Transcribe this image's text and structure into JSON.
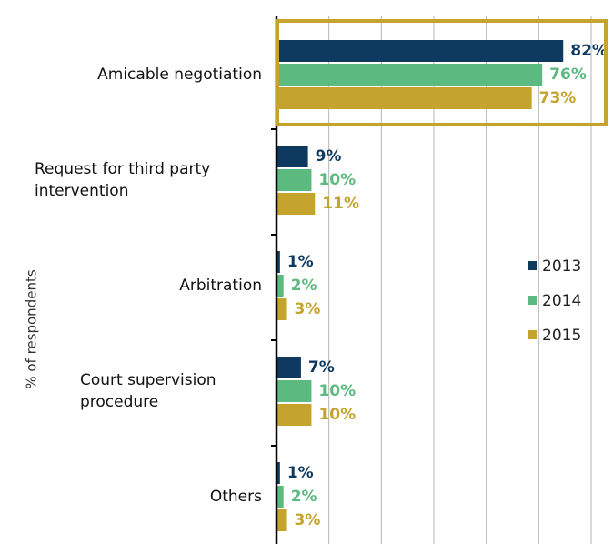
{
  "chart_data": {
    "type": "bar",
    "orientation": "horizontal",
    "y_axis_label": "% of respondents",
    "categories": [
      "Amicable negotiation",
      "Request for third party intervention",
      "Arbitration",
      "Court supervision procedure",
      "Others"
    ],
    "series": [
      {
        "name": "2013",
        "color": "#0f3a5f",
        "values": [
          82,
          9,
          1,
          7,
          1
        ],
        "value_labels": [
          "82%",
          "9%",
          "1%",
          "7%",
          "1%"
        ]
      },
      {
        "name": "2014",
        "color": "#5cb97f",
        "values": [
          76,
          10,
          2,
          10,
          2
        ],
        "value_labels": [
          "76%",
          "10%",
          "2%",
          "10%",
          "2%"
        ]
      },
      {
        "name": "2015",
        "color": "#c4a42d",
        "values": [
          73,
          11,
          3,
          10,
          3
        ],
        "value_labels": [
          "73%",
          "11%",
          "3%",
          "10%",
          "3%"
        ]
      }
    ],
    "xlim": [
      0,
      90
    ],
    "xticks": [
      0,
      15,
      30,
      45,
      60,
      75,
      90
    ],
    "grid": true,
    "highlight_category": 0,
    "highlight_color": "#c4a42d",
    "legend": "right"
  }
}
